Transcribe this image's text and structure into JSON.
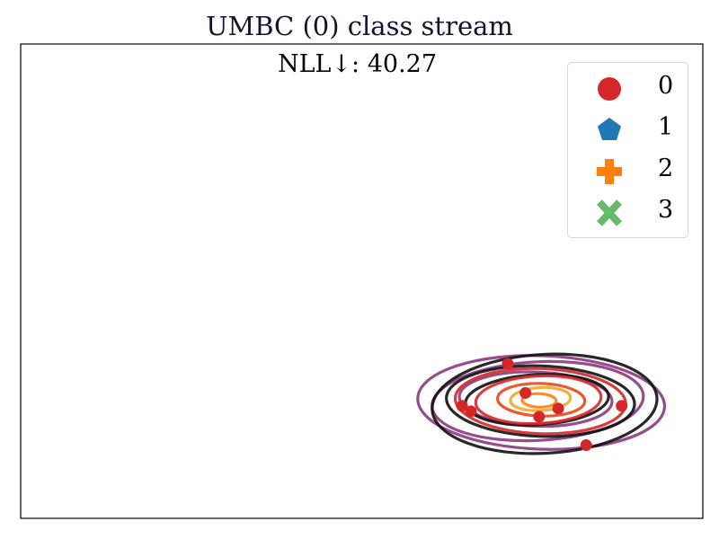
{
  "title": "UMBC (0) class stream",
  "metric": "NLL↓: 40.27",
  "legend": {
    "placement": "top-right",
    "items": [
      {
        "label": "0",
        "marker": "circle",
        "color": "#d62728"
      },
      {
        "label": "1",
        "marker": "pentagon",
        "color": "#1f77b4"
      },
      {
        "label": "2",
        "marker": "plus",
        "color": "#ff7f0e"
      },
      {
        "label": "3",
        "marker": "x",
        "color": "#66bb6a"
      }
    ]
  },
  "chart_data": {
    "type": "scatter",
    "grid": false,
    "axes_visible": false,
    "xlim": [
      0,
      100
    ],
    "ylim": [
      0,
      70
    ],
    "series": [
      {
        "name": "0",
        "marker": "circle",
        "color": "#d62728",
        "points": [
          [
            71.4,
            22.8
          ],
          [
            64.7,
            16.6
          ],
          [
            66.0,
            15.8
          ],
          [
            88.1,
            16.6
          ],
          [
            82.9,
            10.8
          ],
          [
            74.0,
            18.5
          ],
          [
            78.8,
            16.2
          ],
          [
            76.0,
            15.0
          ]
        ]
      }
    ],
    "ellipses": [
      {
        "cx": 76.3,
        "cy": 17.1,
        "rx": 18.1,
        "ry": 6.9,
        "color": "#8b3a7e"
      },
      {
        "cx": 75.8,
        "cy": 17.3,
        "rx": 15.5,
        "ry": 5.8,
        "color": "#8b3a7e"
      },
      {
        "cx": 75.5,
        "cy": 17.6,
        "rx": 11.2,
        "ry": 4.0,
        "color": "#8b3a7e"
      },
      {
        "cx": 76.8,
        "cy": 16.9,
        "rx": 16.5,
        "ry": 7.3,
        "color": "#111111"
      },
      {
        "cx": 76.2,
        "cy": 17.3,
        "rx": 13.8,
        "ry": 5.2,
        "color": "#111111"
      },
      {
        "cx": 75.7,
        "cy": 17.5,
        "rx": 10.5,
        "ry": 3.7,
        "color": "#111111"
      },
      {
        "cx": 76.2,
        "cy": 17.3,
        "rx": 12.5,
        "ry": 4.8,
        "color": "#d62728"
      },
      {
        "cx": 75.9,
        "cy": 17.5,
        "rx": 9.2,
        "ry": 3.5,
        "color": "#d62728"
      },
      {
        "cx": 76.3,
        "cy": 17.5,
        "rx": 6.4,
        "ry": 2.4,
        "color": "#e8481c"
      },
      {
        "cx": 76.2,
        "cy": 17.6,
        "rx": 4.4,
        "ry": 1.7,
        "color": "#f5a623"
      },
      {
        "cx": 76.0,
        "cy": 17.4,
        "rx": 2.5,
        "ry": 1.0,
        "color": "#ff7f0e"
      }
    ]
  }
}
